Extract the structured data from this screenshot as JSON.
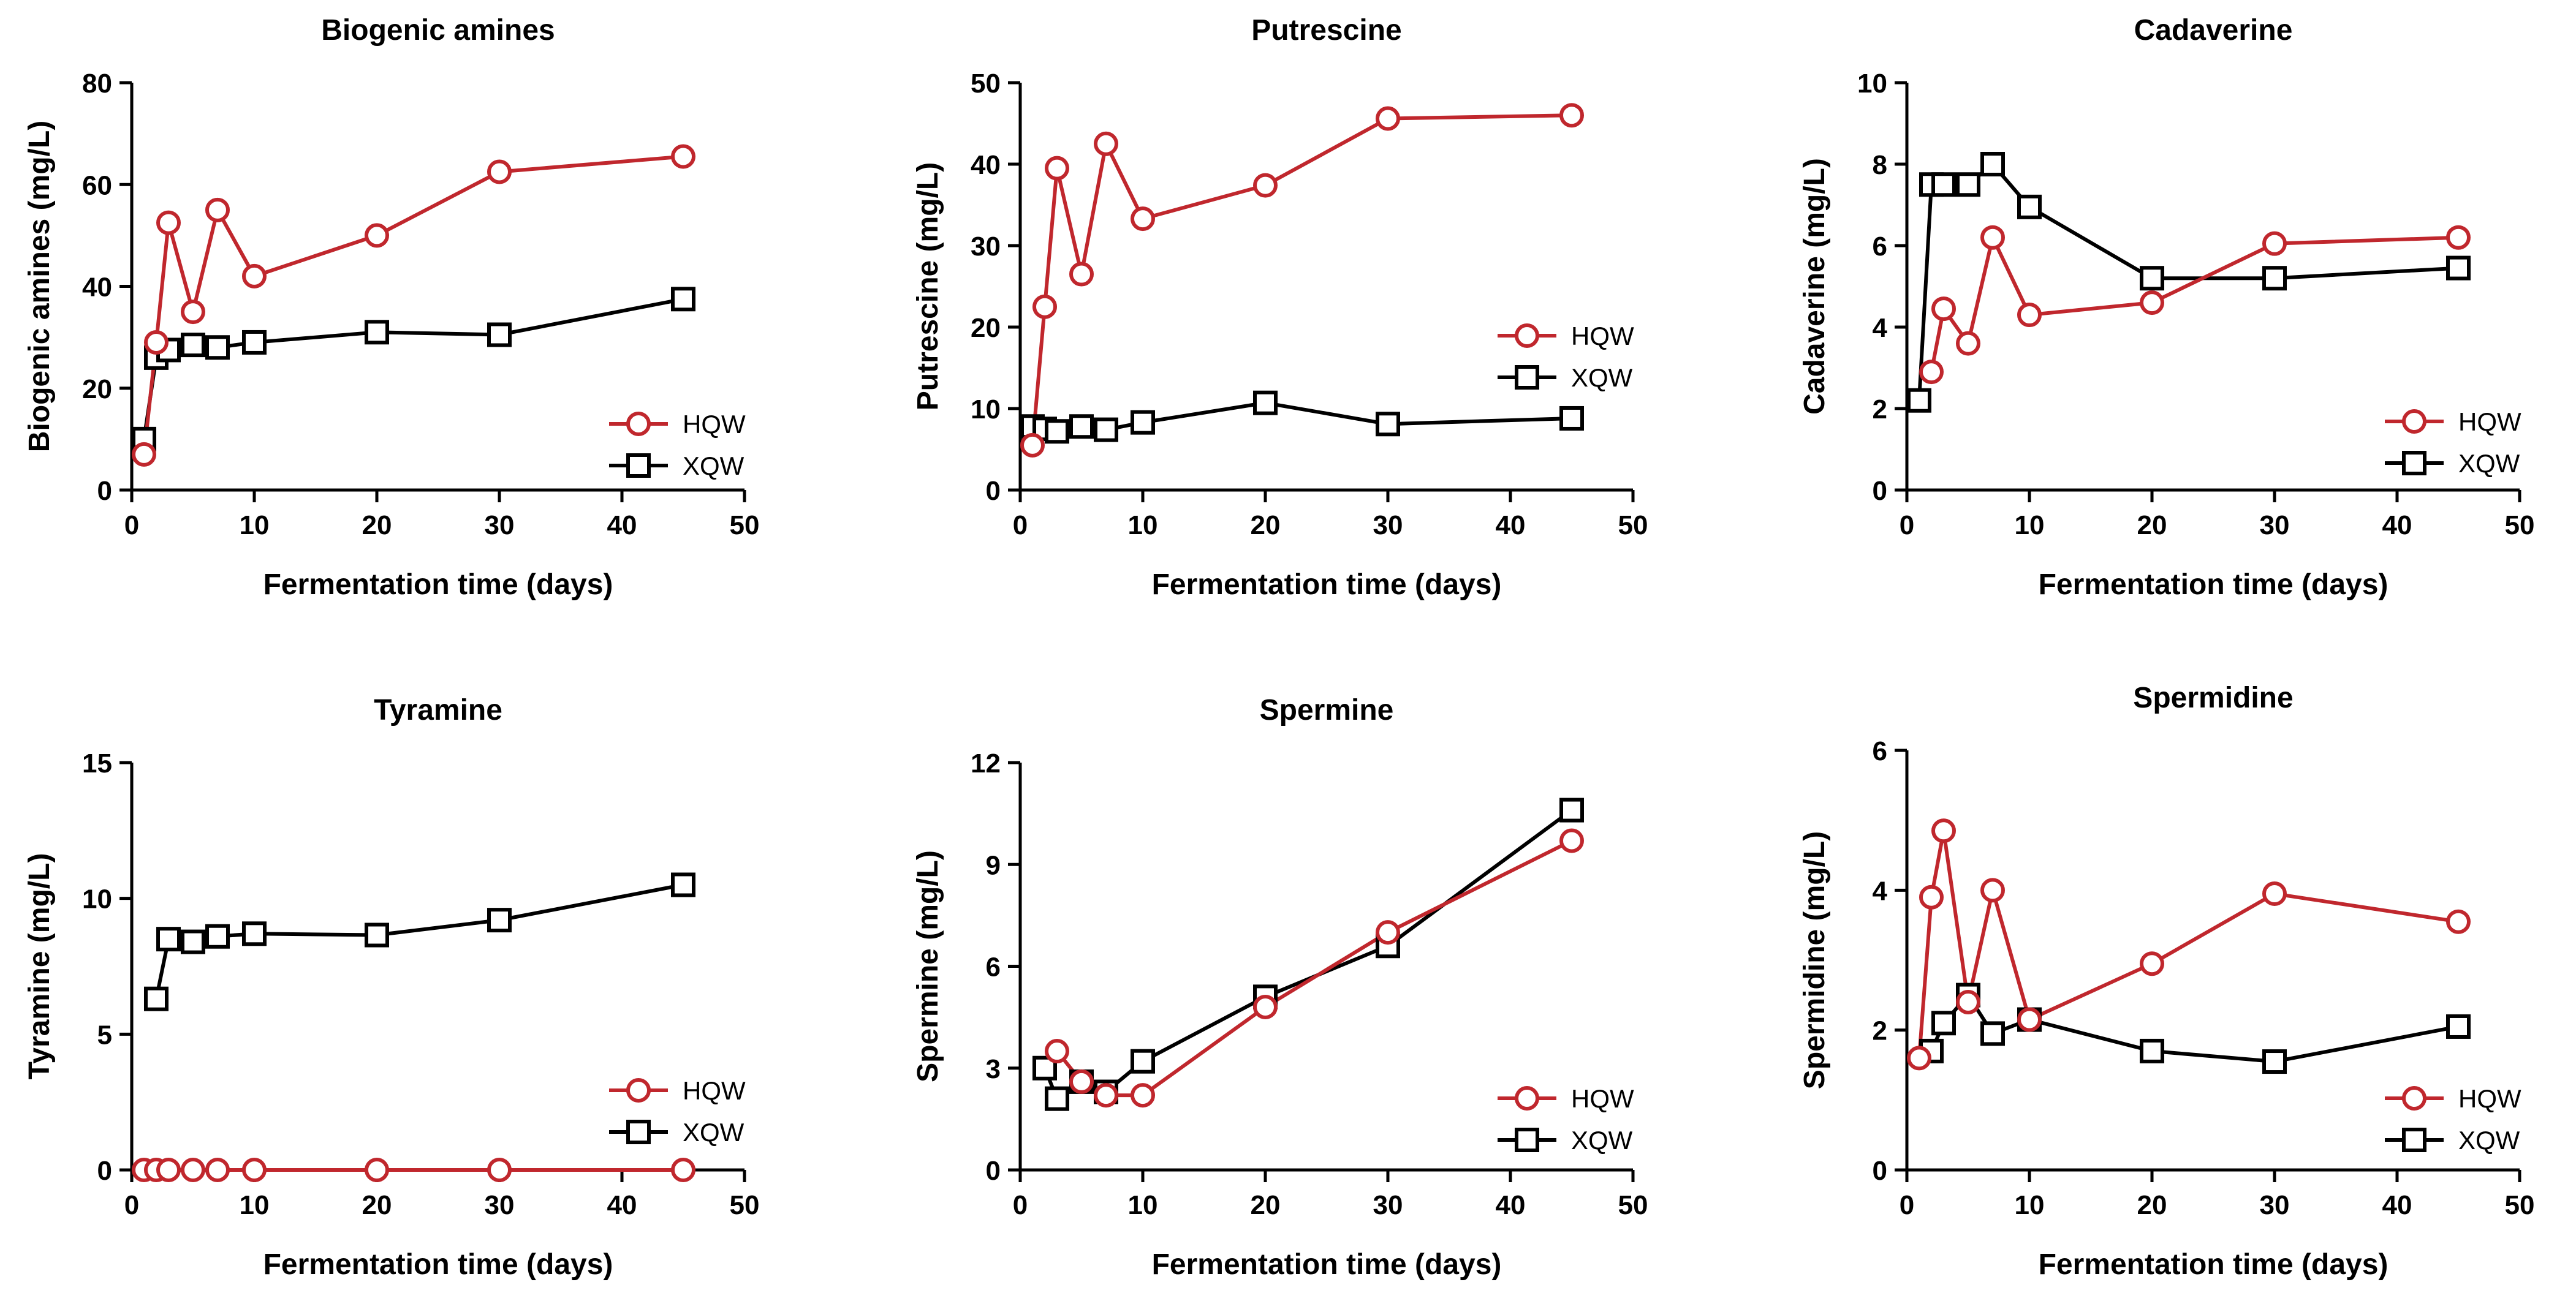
{
  "figure_title": "",
  "colors": {
    "HQW": "#c0272d",
    "XQW": "#000000"
  },
  "chart_data": [
    {
      "type": "line",
      "title": "Biogenic amines",
      "xlabel": "Fermentation time (days)",
      "ylabel": "Biogenic amines (mg/L)",
      "xlim": [
        0,
        50
      ],
      "xticks": [
        0,
        10,
        20,
        30,
        40,
        50
      ],
      "ylim": [
        0,
        80
      ],
      "yticks": [
        0,
        20,
        40,
        60,
        80
      ],
      "grid": false,
      "legend_position": "bottom-right",
      "series": [
        {
          "name": "HQW",
          "marker": "circle",
          "x": [
            1,
            2,
            3,
            5,
            7,
            10,
            20,
            30,
            45
          ],
          "y": [
            7,
            29,
            52.5,
            35,
            55,
            42,
            50,
            62.5,
            65.5
          ]
        },
        {
          "name": "XQW",
          "marker": "square",
          "x": [
            1,
            2,
            3,
            5,
            7,
            10,
            20,
            30,
            45
          ],
          "y": [
            10,
            26,
            27.5,
            28.5,
            28,
            29,
            31,
            30.5,
            37.5
          ]
        }
      ]
    },
    {
      "type": "line",
      "title": "Putrescine",
      "xlabel": "Fermentation time (days)",
      "ylabel": "Putrescine (mg/L)",
      "xlim": [
        0,
        50
      ],
      "xticks": [
        0,
        10,
        20,
        30,
        40,
        50
      ],
      "ylim": [
        0,
        50
      ],
      "yticks": [
        0,
        10,
        20,
        30,
        40,
        50
      ],
      "grid": false,
      "legend_position": "middle-right",
      "series": [
        {
          "name": "HQW",
          "marker": "circle",
          "x": [
            1,
            2,
            3,
            5,
            7,
            10,
            20,
            30,
            45
          ],
          "y": [
            5.5,
            22.5,
            39.5,
            26.5,
            42.5,
            33.3,
            37.4,
            45.6,
            46
          ]
        },
        {
          "name": "XQW",
          "marker": "square",
          "x": [
            1,
            2,
            3,
            5,
            7,
            10,
            20,
            30,
            45
          ],
          "y": [
            7.8,
            7.5,
            7.2,
            7.8,
            7.4,
            8.3,
            10.7,
            8.1,
            8.8
          ]
        }
      ]
    },
    {
      "type": "line",
      "title": "Cadaverine",
      "xlabel": "Fermentation time (days)",
      "ylabel": "Cadaverine (mg/L)",
      "xlim": [
        0,
        50
      ],
      "xticks": [
        0,
        10,
        20,
        30,
        40,
        50
      ],
      "ylim": [
        0,
        10
      ],
      "yticks": [
        0,
        2,
        4,
        6,
        8,
        10
      ],
      "grid": false,
      "legend_position": "bottom-right",
      "series": [
        {
          "name": "HQW",
          "marker": "circle",
          "x": [
            2,
            3,
            5,
            7,
            10,
            20,
            30,
            45
          ],
          "y": [
            2.9,
            4.45,
            3.6,
            6.2,
            4.3,
            4.6,
            6.05,
            6.2
          ]
        },
        {
          "name": "XQW",
          "marker": "square",
          "x": [
            1,
            2,
            3,
            5,
            7,
            10,
            20,
            30,
            45
          ],
          "y": [
            2.2,
            7.5,
            7.5,
            7.5,
            8.0,
            6.95,
            5.2,
            5.2,
            5.45
          ]
        }
      ]
    },
    {
      "type": "line",
      "title": "Tyramine",
      "xlabel": "Fermentation time (days)",
      "ylabel": "Tyramine (mg/L)",
      "xlim": [
        0,
        50
      ],
      "xticks": [
        0,
        10,
        20,
        30,
        40,
        50
      ],
      "ylim": [
        0,
        15
      ],
      "yticks": [
        0,
        5,
        10,
        15
      ],
      "grid": false,
      "legend_position": "bottom-right",
      "series": [
        {
          "name": "HQW",
          "marker": "circle",
          "x": [
            1,
            2,
            3,
            5,
            7,
            10,
            20,
            30,
            45
          ],
          "y": [
            0,
            0,
            0,
            0,
            0,
            0,
            0,
            0,
            0
          ]
        },
        {
          "name": "XQW",
          "marker": "square",
          "x": [
            2,
            3,
            5,
            7,
            10,
            20,
            30,
            45
          ],
          "y": [
            6.3,
            8.5,
            8.4,
            8.6,
            8.7,
            8.65,
            9.2,
            10.5
          ]
        }
      ]
    },
    {
      "type": "line",
      "title": "Spermine",
      "xlabel": "Fermentation time (days)",
      "ylabel": "Spermine (mg/L)",
      "xlim": [
        0,
        50
      ],
      "xticks": [
        0,
        10,
        20,
        30,
        40,
        50
      ],
      "ylim": [
        0,
        12
      ],
      "yticks": [
        0,
        3,
        6,
        9,
        12
      ],
      "grid": false,
      "legend_position": "bottom-right",
      "series": [
        {
          "name": "HQW",
          "marker": "circle",
          "x": [
            3,
            5,
            7,
            10,
            20,
            30,
            45
          ],
          "y": [
            3.5,
            2.6,
            2.2,
            2.2,
            4.8,
            7.0,
            9.7
          ]
        },
        {
          "name": "XQW",
          "marker": "square",
          "x": [
            2,
            3,
            5,
            7,
            10,
            20,
            30,
            45
          ],
          "y": [
            3.0,
            2.1,
            2.6,
            2.3,
            3.2,
            5.1,
            6.6,
            10.6
          ]
        }
      ]
    },
    {
      "type": "line",
      "title": "Spermidine",
      "xlabel": "Fermentation time (days)",
      "ylabel": "Spermidine (mg/L)",
      "xlim": [
        0,
        50
      ],
      "xticks": [
        0,
        10,
        20,
        30,
        40,
        50
      ],
      "ylim": [
        0,
        6
      ],
      "yticks": [
        0,
        2,
        4,
        6
      ],
      "grid": false,
      "legend_position": "bottom-right",
      "series": [
        {
          "name": "HQW",
          "marker": "circle",
          "x": [
            1,
            2,
            3,
            5,
            7,
            10,
            20,
            30,
            45
          ],
          "y": [
            1.6,
            3.9,
            4.85,
            2.4,
            4.0,
            2.15,
            2.95,
            3.95,
            3.55
          ]
        },
        {
          "name": "XQW",
          "marker": "square",
          "x": [
            2,
            3,
            5,
            7,
            10,
            20,
            30,
            45
          ],
          "y": [
            1.7,
            2.1,
            2.5,
            1.95,
            2.15,
            1.7,
            1.55,
            2.05
          ]
        }
      ]
    }
  ]
}
